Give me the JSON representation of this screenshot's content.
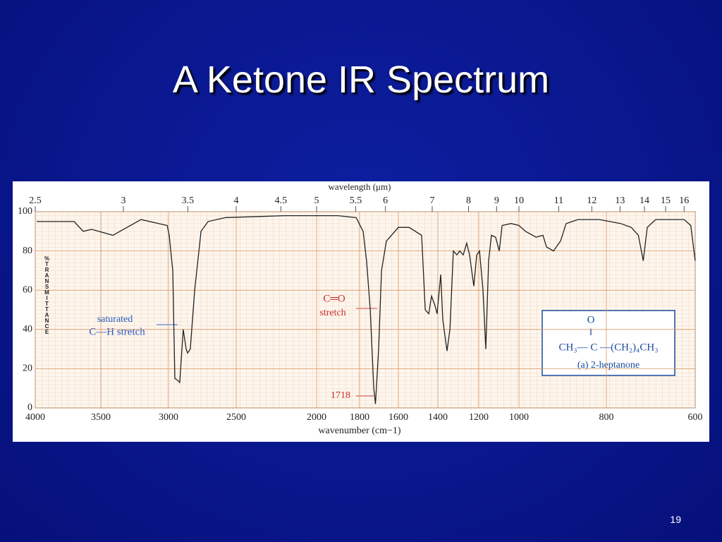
{
  "title": "A Ketone IR Spectrum",
  "page_number": "19",
  "chart_data": {
    "type": "line",
    "x_label": "wavenumber (cm−1)",
    "x2_label": "wavelength (μm)",
    "y_label": "%TRANSMITTANCE",
    "xlim": [
      4000,
      600
    ],
    "xticks": [
      4000,
      3500,
      3000,
      2500,
      2000,
      1800,
      1600,
      1400,
      1200,
      1000,
      800,
      600
    ],
    "x2ticks": [
      2.5,
      3,
      3.5,
      4,
      4.5,
      5,
      5.5,
      6,
      7,
      8,
      9,
      10,
      11,
      12,
      13,
      14,
      15,
      16
    ],
    "ylim": [
      0,
      100
    ],
    "yticks": [
      0,
      20,
      40,
      60,
      80,
      100
    ],
    "grid": true,
    "color": "#222222",
    "x": [
      3989,
      3704,
      3634,
      3570,
      3516,
      3411,
      3203,
      3010,
      2995,
      2969,
      2953,
      2932,
      2917,
      2891,
      2870,
      2859,
      2839,
      2807,
      2760,
      2708,
      2578,
      2200,
      1900,
      1816,
      1782,
      1764,
      1745,
      1727,
      1718,
      1702,
      1687,
      1662,
      1600,
      1546,
      1482,
      1464,
      1446,
      1432,
      1414,
      1404,
      1386,
      1376,
      1355,
      1341,
      1324,
      1307,
      1293,
      1276,
      1259,
      1245,
      1224,
      1210,
      1196,
      1179,
      1165,
      1151,
      1137,
      1116,
      1098,
      1084,
      1039,
      1000,
      985,
      961,
      945,
      937,
      921,
      905,
      892,
      865,
      816,
      768,
      744,
      728,
      717,
      708,
      689,
      625,
      610,
      600
    ],
    "values": [
      95,
      95,
      90,
      91,
      90,
      88,
      96,
      93,
      88,
      70,
      15,
      14,
      13,
      40,
      30,
      28,
      30,
      60,
      90,
      95,
      97,
      98,
      98,
      97,
      90,
      75,
      50,
      10,
      2,
      30,
      70,
      85,
      92,
      92,
      88,
      50,
      48,
      57,
      52,
      48,
      68,
      45,
      29,
      40,
      80,
      78,
      80,
      78,
      84,
      78,
      62,
      78,
      80,
      60,
      30,
      75,
      88,
      87,
      80,
      93,
      94,
      93,
      90,
      87,
      88,
      82,
      80,
      85,
      94,
      96,
      96,
      94,
      92,
      88,
      75,
      92,
      96,
      96,
      93,
      75
    ],
    "annotations": {
      "co_stretch": [
        "C═O",
        "stretch"
      ],
      "peak": "1718",
      "ch_stretch": [
        "saturated",
        "C—H  stretch"
      ],
      "structure": [
        "O",
        "‖",
        "CH₃— C —(CH₂)₄CH₃",
        "(a) 2-heptanone"
      ]
    }
  }
}
